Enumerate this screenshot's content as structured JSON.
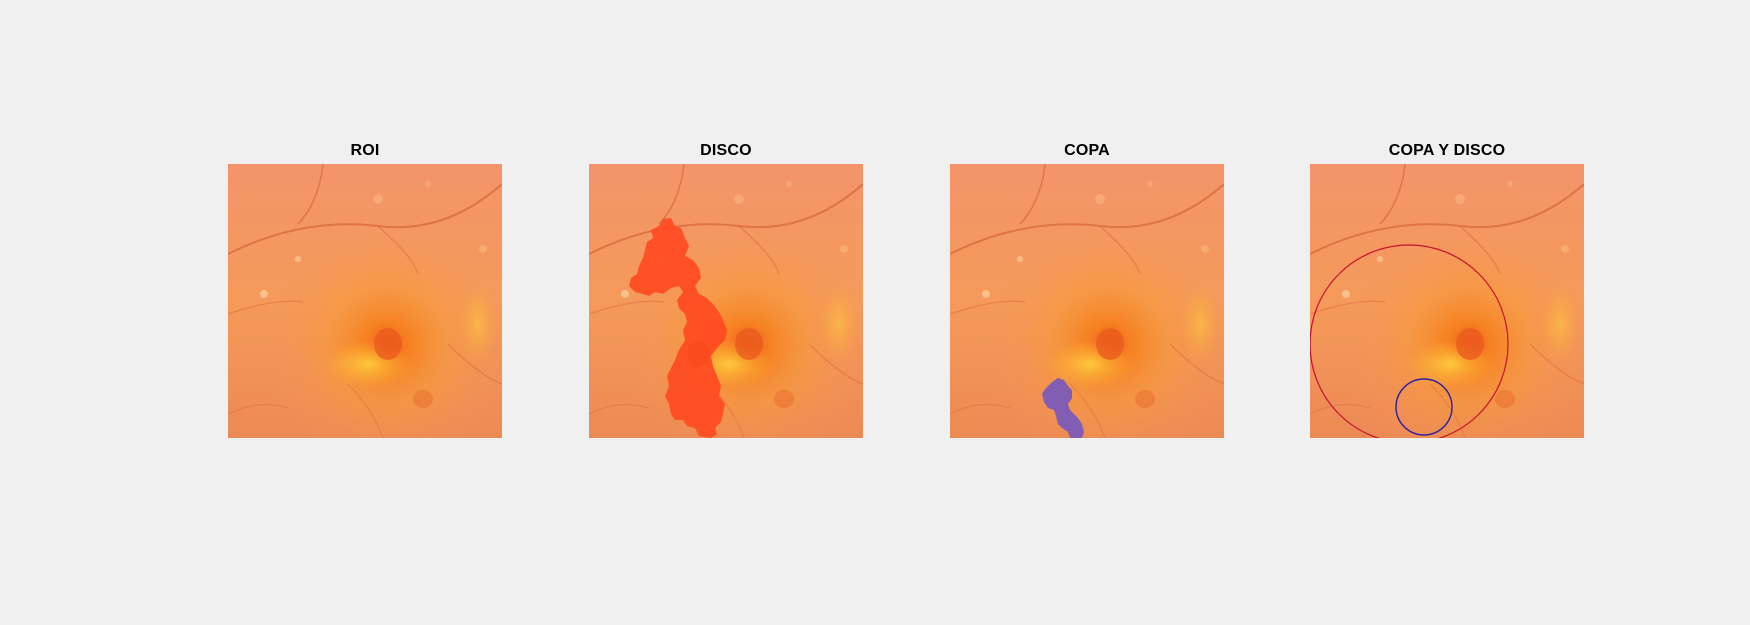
{
  "figure": {
    "panels": [
      {
        "title": "ROI"
      },
      {
        "title": "DISCO"
      },
      {
        "title": "COPA"
      },
      {
        "title": "COPA Y DISCO"
      }
    ]
  },
  "colors": {
    "background": "#f0f0f0",
    "fundus_base": "#f5955a",
    "macula": "#f26a2a",
    "disc_mask": "#ff4a22",
    "cup_mask": "#7a5bb8",
    "disc_circle": "#c8102e",
    "cup_circle": "#2b1f9e"
  }
}
